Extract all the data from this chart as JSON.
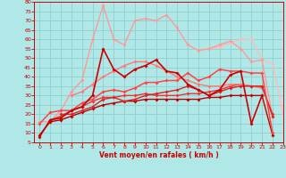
{
  "xlabel": "Vent moyen/en rafales ( km/h )",
  "xlim": [
    -0.5,
    23
  ],
  "ylim": [
    5,
    80
  ],
  "yticks": [
    5,
    10,
    15,
    20,
    25,
    30,
    35,
    40,
    45,
    50,
    55,
    60,
    65,
    70,
    75,
    80
  ],
  "xticks": [
    0,
    1,
    2,
    3,
    4,
    5,
    6,
    7,
    8,
    9,
    10,
    11,
    12,
    13,
    14,
    15,
    16,
    17,
    18,
    19,
    20,
    21,
    22,
    23
  ],
  "bg_color": "#b0e8e8",
  "grid_color": "#90d0d0",
  "lines": [
    {
      "y": [
        8,
        17,
        18,
        22,
        24,
        30,
        55,
        44,
        40,
        44,
        46,
        49,
        43,
        42,
        36,
        33,
        30,
        33,
        41,
        43,
        15,
        30,
        null,
        null
      ],
      "color": "#cc0000",
      "lw": 1.2,
      "zorder": 6
    },
    {
      "y": [
        16,
        16,
        22,
        32,
        38,
        60,
        78,
        60,
        57,
        70,
        71,
        70,
        73,
        66,
        57,
        54,
        55,
        57,
        59,
        55,
        48,
        49,
        19,
        null
      ],
      "color": "#ff9999",
      "lw": 1.0,
      "zorder": 3
    },
    {
      "y": [
        null,
        null,
        null,
        30,
        32,
        36,
        40,
        43,
        46,
        48,
        48,
        46,
        43,
        40,
        38,
        36,
        35,
        35,
        36,
        36,
        35,
        34,
        null,
        null
      ],
      "color": "#ff7777",
      "lw": 1.0,
      "zorder": 4
    },
    {
      "y": [
        15,
        21,
        22,
        22,
        26,
        28,
        32,
        33,
        32,
        34,
        37,
        37,
        38,
        38,
        42,
        38,
        40,
        44,
        43,
        43,
        42,
        42,
        10,
        null
      ],
      "color": "#ff4444",
      "lw": 1.1,
      "zorder": 5
    },
    {
      "y": [
        null,
        null,
        20,
        20,
        22,
        24,
        28,
        29,
        27,
        28,
        30,
        31,
        32,
        33,
        35,
        33,
        30,
        32,
        34,
        35,
        35,
        35,
        19,
        null
      ],
      "color": "#dd2222",
      "lw": 1.0,
      "zorder": 4
    },
    {
      "y": [
        null,
        null,
        null,
        null,
        null,
        null,
        null,
        null,
        null,
        null,
        null,
        null,
        null,
        null,
        null,
        null,
        null,
        null,
        null,
        null,
        null,
        null,
        null,
        null
      ],
      "color": "#990000",
      "lw": 1.0,
      "zorder": 3
    },
    {
      "y": [
        null,
        17,
        19,
        22,
        24,
        27,
        29,
        29,
        30,
        30,
        31,
        30,
        30,
        30,
        31,
        31,
        32,
        33,
        35,
        36,
        35,
        35,
        20,
        null
      ],
      "color": "#ee3333",
      "lw": 1.0,
      "zorder": 3
    },
    {
      "y": [
        null,
        null,
        null,
        null,
        null,
        null,
        null,
        null,
        null,
        null,
        null,
        null,
        null,
        null,
        null,
        null,
        55,
        56,
        58,
        60,
        60,
        49,
        47,
        20
      ],
      "color": "#ffbbbb",
      "lw": 1.0,
      "zorder": 2
    },
    {
      "y": [
        9,
        16,
        17,
        19,
        21,
        23,
        25,
        26,
        27,
        27,
        28,
        28,
        28,
        28,
        28,
        28,
        29,
        29,
        30,
        30,
        30,
        30,
        9,
        null
      ],
      "color": "#bb0000",
      "lw": 1.0,
      "zorder": 3
    }
  ]
}
